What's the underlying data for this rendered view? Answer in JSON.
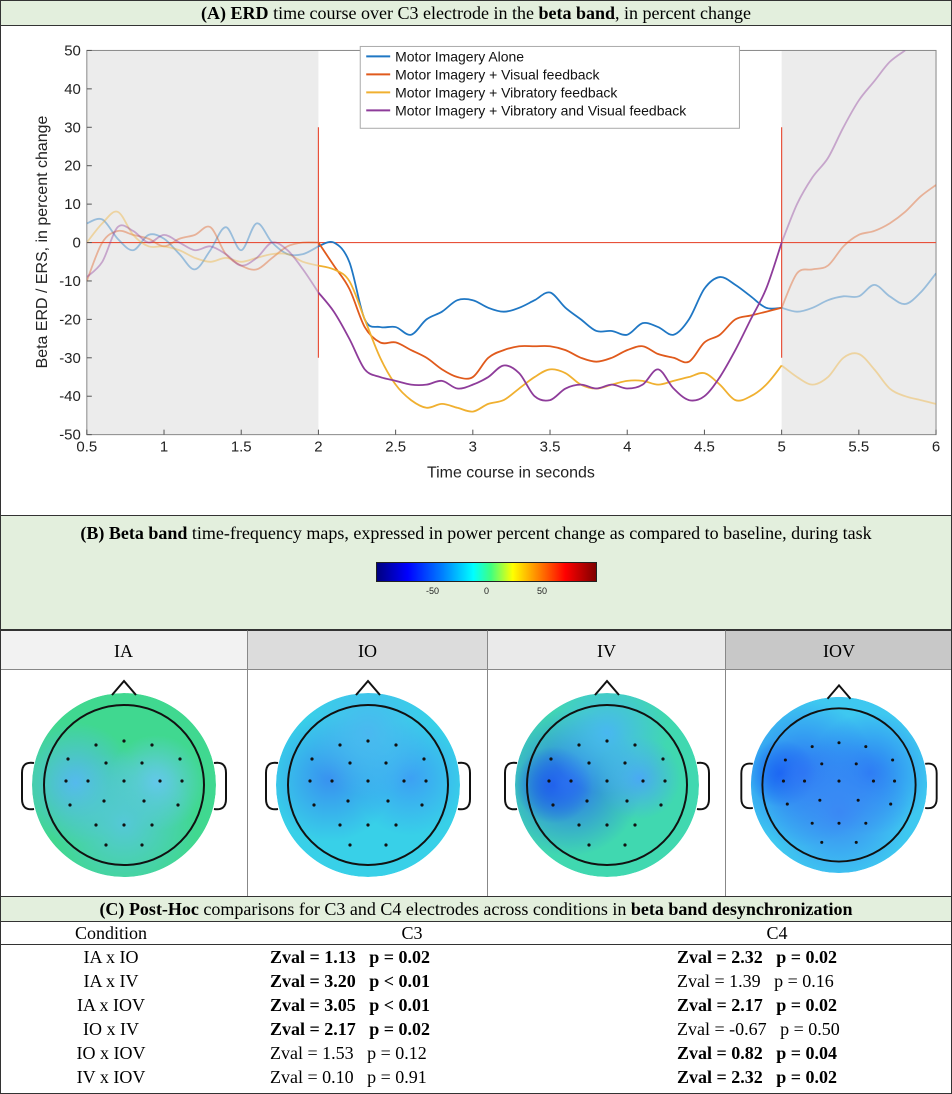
{
  "panelA": {
    "title_prefix": "(A) ",
    "title_bold": "ERD",
    "title_mid": " time course over C3 electrode in the ",
    "title_bold2": "beta band",
    "title_suffix": ", in percent change"
  },
  "chart_data": {
    "type": "line",
    "xlabel": "Time course in seconds",
    "ylabel": "Beta ERD / ERS, in percent change",
    "xlim": [
      0.5,
      6
    ],
    "ylim": [
      -50,
      50
    ],
    "xticks": [
      "0.5",
      "1",
      "1.5",
      "2",
      "2.5",
      "3",
      "3.5",
      "4",
      "4.5",
      "5",
      "5.5",
      "6"
    ],
    "yticks": [
      "50",
      "40",
      "30",
      "20",
      "10",
      "0",
      "-10",
      "-20",
      "-30",
      "-40",
      "-50"
    ],
    "shaded_intervals": [
      [
        0.5,
        2
      ],
      [
        5,
        6
      ]
    ],
    "vertical_markers": [
      2,
      5
    ],
    "legend_position": "top-center",
    "series": [
      {
        "name": "Motor Imagery Alone",
        "color": "#1f77c4",
        "x": [
          0.5,
          0.6,
          0.7,
          0.8,
          0.9,
          1.0,
          1.1,
          1.2,
          1.3,
          1.4,
          1.5,
          1.6,
          1.7,
          1.8,
          1.9,
          2.0,
          2.1,
          2.2,
          2.3,
          2.4,
          2.5,
          2.6,
          2.7,
          2.8,
          2.9,
          3.0,
          3.1,
          3.2,
          3.3,
          3.4,
          3.5,
          3.6,
          3.7,
          3.8,
          3.9,
          4.0,
          4.1,
          4.2,
          4.3,
          4.4,
          4.5,
          4.6,
          4.7,
          4.8,
          4.9,
          5.0,
          5.1,
          5.2,
          5.3,
          5.4,
          5.5,
          5.6,
          5.7,
          5.8,
          5.9,
          6.0
        ],
        "y": [
          5,
          6,
          1,
          -2,
          2,
          1,
          -3,
          -7,
          -2,
          4,
          -2,
          5,
          0,
          -3,
          -3,
          -1,
          0,
          -5,
          -20,
          -22,
          -22,
          -24,
          -20,
          -18,
          -15,
          -15,
          -17,
          -18,
          -17,
          -15,
          -13,
          -17,
          -20,
          -23,
          -23,
          -24,
          -21,
          -22,
          -24,
          -20,
          -12,
          -9,
          -11,
          -14,
          -17,
          -17,
          -18,
          -17,
          -15,
          -14,
          -14,
          -11,
          -14,
          -16,
          -13,
          -8
        ]
      },
      {
        "name": "Motor Imagery + Visual feedback",
        "color": "#e05a1c",
        "x": [
          0.5,
          0.6,
          0.7,
          0.8,
          0.9,
          1.0,
          1.1,
          1.2,
          1.3,
          1.4,
          1.5,
          1.6,
          1.7,
          1.8,
          1.9,
          2.0,
          2.1,
          2.2,
          2.3,
          2.4,
          2.5,
          2.6,
          2.7,
          2.8,
          2.9,
          3.0,
          3.1,
          3.2,
          3.3,
          3.4,
          3.5,
          3.6,
          3.7,
          3.8,
          3.9,
          4.0,
          4.1,
          4.2,
          4.3,
          4.4,
          4.5,
          4.6,
          4.7,
          4.8,
          4.9,
          5.0,
          5.1,
          5.2,
          5.3,
          5.4,
          5.5,
          5.6,
          5.7,
          5.8,
          5.9,
          6.0
        ],
        "y": [
          -10,
          0,
          3,
          2,
          1,
          -1,
          1,
          2,
          4,
          -3,
          -6,
          -7,
          -4,
          -1,
          0,
          0,
          -6,
          -12,
          -22,
          -26,
          -26,
          -28,
          -30,
          -33,
          -35,
          -35,
          -30,
          -28,
          -27,
          -27,
          -27,
          -28,
          -30,
          -31,
          -30,
          -28,
          -27,
          -29,
          -30,
          -31,
          -26,
          -24,
          -20,
          -19,
          -18,
          -17,
          -8,
          -7,
          -6,
          -1,
          2,
          3,
          5,
          8,
          12,
          15
        ]
      },
      {
        "name": "Motor Imagery + Vibratory feedback",
        "color": "#f0b030",
        "x": [
          0.5,
          0.6,
          0.7,
          0.8,
          0.9,
          1.0,
          1.1,
          1.2,
          1.3,
          1.4,
          1.5,
          1.6,
          1.7,
          1.8,
          1.9,
          2.0,
          2.1,
          2.2,
          2.3,
          2.4,
          2.5,
          2.6,
          2.7,
          2.8,
          2.9,
          3.0,
          3.1,
          3.2,
          3.3,
          3.4,
          3.5,
          3.6,
          3.7,
          3.8,
          3.9,
          4.0,
          4.1,
          4.2,
          4.3,
          4.4,
          4.5,
          4.6,
          4.7,
          4.8,
          4.9,
          5.0,
          5.1,
          5.2,
          5.3,
          5.4,
          5.5,
          5.6,
          5.7,
          5.8,
          5.9,
          6.0
        ],
        "y": [
          0,
          5,
          8,
          2,
          -1,
          -1,
          -2,
          -4,
          -5,
          -4,
          -5,
          -4,
          -3,
          -3,
          -5,
          -6,
          -7,
          -10,
          -20,
          -30,
          -37,
          -41,
          -43,
          -42,
          -43,
          -44,
          -42,
          -41,
          -38,
          -35,
          -33,
          -34,
          -37,
          -38,
          -37,
          -36,
          -36,
          -37,
          -36,
          -35,
          -34,
          -37,
          -41,
          -40,
          -37,
          -32,
          -35,
          -37,
          -35,
          -30,
          -29,
          -33,
          -38,
          -40,
          -41,
          -42
        ]
      },
      {
        "name": "Motor Imagery + Vibratory and Visual feedback",
        "color": "#8e3c9a",
        "x": [
          0.5,
          0.6,
          0.7,
          0.8,
          0.9,
          1.0,
          1.1,
          1.2,
          1.3,
          1.4,
          1.5,
          1.6,
          1.7,
          1.8,
          1.9,
          2.0,
          2.1,
          2.2,
          2.3,
          2.4,
          2.5,
          2.6,
          2.7,
          2.8,
          2.9,
          3.0,
          3.1,
          3.2,
          3.3,
          3.4,
          3.5,
          3.6,
          3.7,
          3.8,
          3.9,
          4.0,
          4.1,
          4.2,
          4.3,
          4.4,
          4.5,
          4.6,
          4.7,
          4.8,
          4.9,
          5.0,
          5.1,
          5.2,
          5.3,
          5.4,
          5.5,
          5.6,
          5.7,
          5.8
        ],
        "y": [
          -9,
          -5,
          4,
          3,
          0,
          2,
          0,
          -2,
          -1,
          -3,
          -6,
          -4,
          0,
          -2,
          -7,
          -13,
          -18,
          -25,
          -33,
          -35,
          -36,
          -37,
          -37,
          -36,
          -38,
          -37,
          -35,
          -32,
          -34,
          -40,
          -41,
          -38,
          -37,
          -38,
          -37,
          -38,
          -37,
          -33,
          -38,
          -41,
          -40,
          -35,
          -28,
          -20,
          -12,
          0,
          10,
          17,
          22,
          30,
          37,
          42,
          47,
          50
        ]
      }
    ]
  },
  "panelB": {
    "title_prefix": "(B) ",
    "title_bold": "Beta band",
    "title_rest": " time-frequency maps, expressed in power percent change as compared to baseline, during task",
    "colorbar_ticks": [
      "-50",
      "0",
      "50"
    ],
    "conditions": [
      "IA",
      "IO",
      "IV",
      "IOV"
    ]
  },
  "panelC": {
    "title_prefix": "(C) ",
    "title_bold": "Post-Hoc",
    "title_mid": " comparisons for C3 and C4 electrodes across conditions in ",
    "title_bold2": "beta band desynchronization",
    "headers": [
      "Condition",
      "C3",
      "C4"
    ],
    "rows": [
      {
        "condition": "IA x IO",
        "c3": "Zval = 1.13   p = 0.02",
        "c3_bold": true,
        "c4": "Zval = 2.32   p = 0.02",
        "c4_bold": true
      },
      {
        "condition": "IA x IV",
        "c3": "Zval = 3.20   p < 0.01",
        "c3_bold": true,
        "c4": "Zval = 1.39   p = 0.16",
        "c4_bold": false
      },
      {
        "condition": "IA x IOV",
        "c3": "Zval = 3.05   p < 0.01",
        "c3_bold": true,
        "c4": "Zval = 2.17   p = 0.02",
        "c4_bold": true
      },
      {
        "condition": "IO x IV",
        "c3": "Zval = 2.17   p = 0.02",
        "c3_bold": true,
        "c4": "Zval = -0.67   p = 0.50",
        "c4_bold": false
      },
      {
        "condition": "IO x IOV",
        "c3": "Zval = 1.53   p = 0.12",
        "c3_bold": false,
        "c4": "Zval = 0.82   p = 0.04",
        "c4_bold": true
      },
      {
        "condition": "IV x IOV",
        "c3": "Zval = 0.10   p = 0.91",
        "c3_bold": false,
        "c4": "Zval = 2.32   p = 0.02",
        "c4_bold": true
      }
    ]
  }
}
